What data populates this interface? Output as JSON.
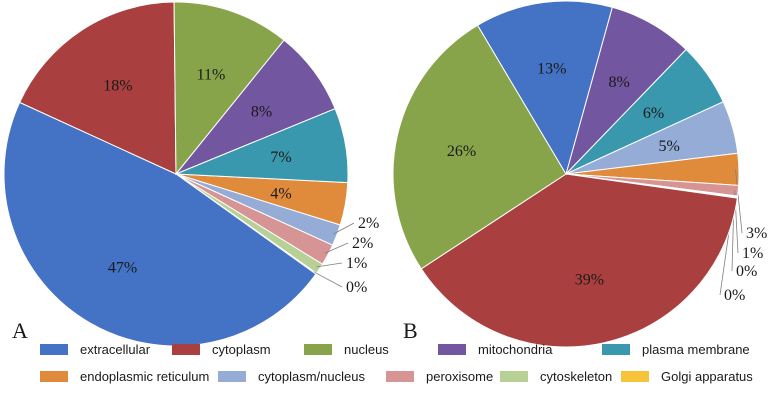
{
  "chart_data": [
    {
      "type": "pie",
      "panel_label": "A",
      "values": [
        47,
        18,
        11,
        8,
        7,
        4,
        2,
        2,
        1,
        0
      ],
      "labels": [
        "47%",
        "18%",
        "11%",
        "8%",
        "7%",
        "4%",
        "2%",
        "2%",
        "1%",
        "0%"
      ]
    },
    {
      "type": "pie",
      "panel_label": "B",
      "values": [
        13,
        39,
        26,
        8,
        6,
        3,
        5,
        1,
        0,
        0
      ],
      "labels": [
        "13%",
        "39%",
        "26%",
        "8%",
        "6%",
        "3%",
        "5%",
        "1%",
        "0%",
        "0%"
      ]
    }
  ],
  "legend": [
    {
      "name": "extracellular",
      "color": "#4472c4"
    },
    {
      "name": "cytoplasm",
      "color": "#a9403f"
    },
    {
      "name": "nucleus",
      "color": "#88a44a"
    },
    {
      "name": "mitochondria",
      "color": "#7356a0"
    },
    {
      "name": "plasma membrane",
      "color": "#3a98ae"
    },
    {
      "name": "endoplasmic reticulum",
      "color": "#e08a3c"
    },
    {
      "name": "cytoplasm/nucleus",
      "color": "#94acd6"
    },
    {
      "name": "peroxisome",
      "color": "#d69594"
    },
    {
      "name": "cytoskeleton",
      "color": "#b6d096"
    },
    {
      "name": "Golgi apparatus",
      "color": "#f6c33a"
    }
  ]
}
